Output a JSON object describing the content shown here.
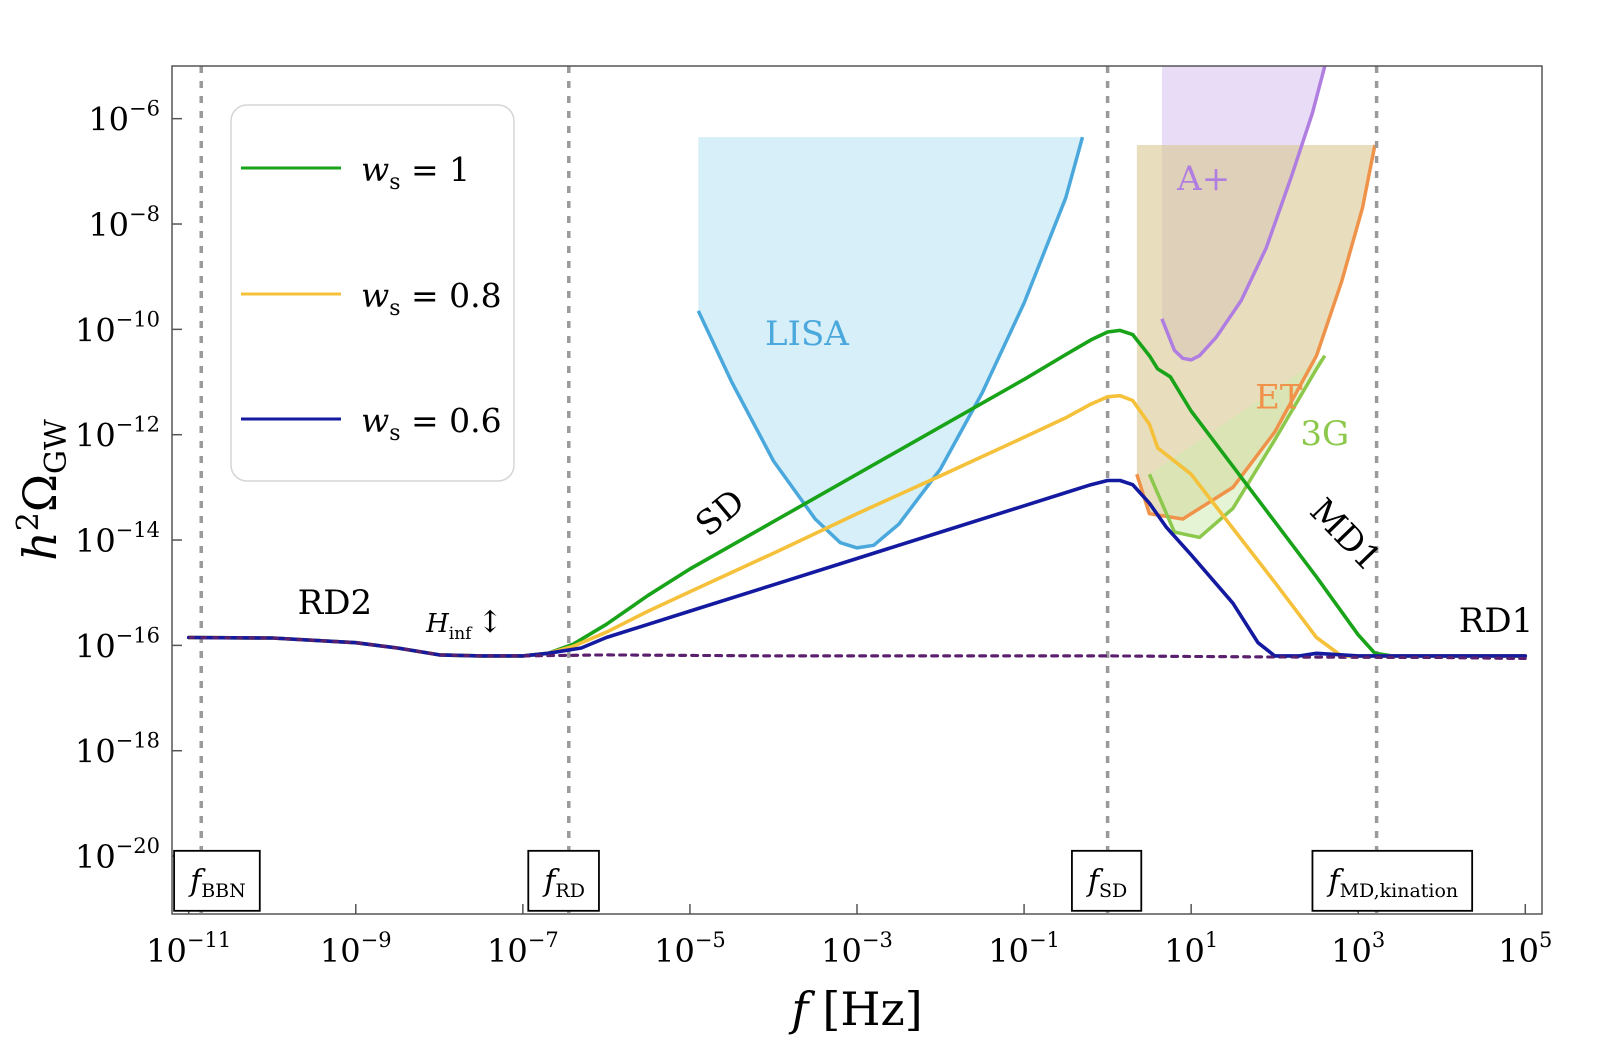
{
  "chart_data": {
    "type": "line",
    "title": "",
    "xlabel": "f [Hz]",
    "xlabel_parts": {
      "var": "f",
      "unit": "[Hz]"
    },
    "ylabel": "h²Ω_GW",
    "ylabel_parts": {
      "h": "h",
      "sq": "2",
      "omega": "Ω",
      "sub": "GW"
    },
    "x_scale": "log10",
    "y_scale": "log10",
    "xlim_log10": [
      -11.2,
      5.2
    ],
    "ylim_log10": [
      -21.1,
      -5.0
    ],
    "x_ticks": [
      {
        "exp": -11,
        "base": "10",
        "sup": "−11"
      },
      {
        "exp": -9,
        "base": "10",
        "sup": "−9"
      },
      {
        "exp": -7,
        "base": "10",
        "sup": "−7"
      },
      {
        "exp": -5,
        "base": "10",
        "sup": "−5"
      },
      {
        "exp": -3,
        "base": "10",
        "sup": "−3"
      },
      {
        "exp": -1,
        "base": "10",
        "sup": "−1"
      },
      {
        "exp": 1,
        "base": "10",
        "sup": "1"
      },
      {
        "exp": 3,
        "base": "10",
        "sup": "3"
      },
      {
        "exp": 5,
        "base": "10",
        "sup": "5"
      }
    ],
    "y_ticks": [
      {
        "exp": -6,
        "base": "10",
        "sup": "−6"
      },
      {
        "exp": -8,
        "base": "10",
        "sup": "−8"
      },
      {
        "exp": -10,
        "base": "10",
        "sup": "−10"
      },
      {
        "exp": -12,
        "base": "10",
        "sup": "−12"
      },
      {
        "exp": -14,
        "base": "10",
        "sup": "−14"
      },
      {
        "exp": -16,
        "base": "10",
        "sup": "−16"
      },
      {
        "exp": -18,
        "base": "10",
        "sup": "−18"
      },
      {
        "exp": -20,
        "base": "10",
        "sup": "−20"
      }
    ],
    "legend": {
      "placement": "top-left",
      "entries": [
        {
          "series": 0,
          "prefix": "w",
          "sub": "s",
          "eq": " = 1"
        },
        {
          "series": 1,
          "prefix": "w",
          "sub": "s",
          "eq": " = 0.8"
        },
        {
          "series": 2,
          "prefix": "w",
          "sub": "s",
          "eq": " = 0.6"
        }
      ]
    },
    "series": [
      {
        "name": "w_s = 1",
        "color": "#18a318",
        "points": [
          [
            -11,
            -15.85
          ],
          [
            -10,
            -15.86
          ],
          [
            -9,
            -15.95
          ],
          [
            -8.5,
            -16.05
          ],
          [
            -8,
            -16.18
          ],
          [
            -7.5,
            -16.2
          ],
          [
            -7,
            -16.2
          ],
          [
            -6.7,
            -16.15
          ],
          [
            -6.4,
            -15.98
          ],
          [
            -6,
            -15.6
          ],
          [
            -5.5,
            -15.05
          ],
          [
            -5,
            -14.55
          ],
          [
            -4,
            -13.65
          ],
          [
            -3,
            -12.75
          ],
          [
            -2,
            -11.85
          ],
          [
            -1,
            -10.95
          ],
          [
            -0.5,
            -10.48
          ],
          [
            -0.2,
            -10.2
          ],
          [
            0,
            -10.05
          ],
          [
            0.15,
            -10.02
          ],
          [
            0.3,
            -10.1
          ],
          [
            0.5,
            -10.5
          ],
          [
            0.6,
            -10.75
          ],
          [
            0.75,
            -10.9
          ],
          [
            1,
            -11.55
          ],
          [
            1.5,
            -12.6
          ],
          [
            2,
            -13.65
          ],
          [
            2.5,
            -14.7
          ],
          [
            3,
            -15.8
          ],
          [
            3.2,
            -16.15
          ],
          [
            3.4,
            -16.2
          ],
          [
            4,
            -16.2
          ],
          [
            5,
            -16.2
          ]
        ]
      },
      {
        "name": "w_s = 0.8",
        "color": "#f5c13a",
        "points": [
          [
            -11,
            -15.85
          ],
          [
            -10,
            -15.86
          ],
          [
            -9,
            -15.95
          ],
          [
            -8.5,
            -16.05
          ],
          [
            -8,
            -16.18
          ],
          [
            -7.5,
            -16.2
          ],
          [
            -7,
            -16.2
          ],
          [
            -6.7,
            -16.15
          ],
          [
            -6.4,
            -16.02
          ],
          [
            -6,
            -15.75
          ],
          [
            -5.5,
            -15.35
          ],
          [
            -5,
            -14.98
          ],
          [
            -4,
            -14.25
          ],
          [
            -3,
            -13.5
          ],
          [
            -2,
            -12.78
          ],
          [
            -1,
            -12.05
          ],
          [
            -0.5,
            -11.68
          ],
          [
            -0.2,
            -11.42
          ],
          [
            0,
            -11.28
          ],
          [
            0.15,
            -11.26
          ],
          [
            0.3,
            -11.35
          ],
          [
            0.5,
            -11.8
          ],
          [
            0.6,
            -12.25
          ],
          [
            1,
            -12.75
          ],
          [
            1.5,
            -13.78
          ],
          [
            2,
            -14.8
          ],
          [
            2.5,
            -15.85
          ],
          [
            2.8,
            -16.2
          ],
          [
            3,
            -16.2
          ],
          [
            4,
            -16.2
          ],
          [
            5,
            -16.2
          ]
        ]
      },
      {
        "name": "w_s = 0.6",
        "color": "#141aa0",
        "points": [
          [
            -11,
            -15.85
          ],
          [
            -10,
            -15.86
          ],
          [
            -9,
            -15.95
          ],
          [
            -8.5,
            -16.05
          ],
          [
            -8,
            -16.18
          ],
          [
            -7.5,
            -16.2
          ],
          [
            -7,
            -16.2
          ],
          [
            -6.7,
            -16.15
          ],
          [
            -6.3,
            -16.05
          ],
          [
            -6,
            -15.85
          ],
          [
            -5.5,
            -15.6
          ],
          [
            -5,
            -15.35
          ],
          [
            -4,
            -14.85
          ],
          [
            -3,
            -14.35
          ],
          [
            -2,
            -13.85
          ],
          [
            -1,
            -13.35
          ],
          [
            -0.5,
            -13.1
          ],
          [
            -0.2,
            -12.95
          ],
          [
            0,
            -12.87
          ],
          [
            0.15,
            -12.87
          ],
          [
            0.3,
            -12.95
          ],
          [
            0.5,
            -13.3
          ],
          [
            0.7,
            -13.75
          ],
          [
            1,
            -14.28
          ],
          [
            1.5,
            -15.2
          ],
          [
            1.8,
            -15.95
          ],
          [
            2,
            -16.2
          ],
          [
            2.3,
            -16.2
          ],
          [
            2.5,
            -16.15
          ],
          [
            3,
            -16.2
          ],
          [
            5,
            -16.2
          ]
        ]
      },
      {
        "name": "standard (dashed)",
        "color": "#5a1f6e",
        "dashed": true,
        "points": [
          [
            -11,
            -15.85
          ],
          [
            -10,
            -15.86
          ],
          [
            -9,
            -15.95
          ],
          [
            -8.5,
            -16.05
          ],
          [
            -8,
            -16.18
          ],
          [
            -7.5,
            -16.2
          ],
          [
            -7,
            -16.2
          ],
          [
            -6,
            -16.18
          ],
          [
            -4,
            -16.2
          ],
          [
            -2,
            -16.2
          ],
          [
            0,
            -16.2
          ],
          [
            2,
            -16.22
          ],
          [
            4,
            -16.23
          ],
          [
            5,
            -16.25
          ]
        ]
      }
    ],
    "detectors": [
      {
        "name": "LISA",
        "label": "LISA",
        "color": "#4aa8dc",
        "fill": "#aee0f2",
        "fill_opacity": 0.5,
        "top": -6.35,
        "curve": [
          [
            -4.9,
            -9.65
          ],
          [
            -4.5,
            -11.0
          ],
          [
            -4,
            -12.5
          ],
          [
            -3.5,
            -13.6
          ],
          [
            -3.2,
            -14.05
          ],
          [
            -3,
            -14.15
          ],
          [
            -2.8,
            -14.1
          ],
          [
            -2.5,
            -13.7
          ],
          [
            -2,
            -12.65
          ],
          [
            -1.5,
            -11.2
          ],
          [
            -1,
            -9.5
          ],
          [
            -0.5,
            -7.5
          ],
          [
            -0.3,
            -6.35
          ]
        ],
        "label_pos": [
          -3.6,
          -10.3
        ]
      },
      {
        "name": "A+",
        "label": "A+",
        "color": "#b07ee0",
        "fill": "#c7a7e8",
        "fill_opacity": 0.4,
        "top": -5.0,
        "band_x": [
          0.65,
          3.2
        ],
        "curve": [
          [
            0.65,
            -9.8
          ],
          [
            0.8,
            -10.4
          ],
          [
            0.9,
            -10.55
          ],
          [
            1.0,
            -10.58
          ],
          [
            1.1,
            -10.5
          ],
          [
            1.3,
            -10.15
          ],
          [
            1.6,
            -9.45
          ],
          [
            1.9,
            -8.45
          ],
          [
            2.2,
            -7.1
          ],
          [
            2.45,
            -5.9
          ],
          [
            2.6,
            -5.0
          ]
        ],
        "label_pos": [
          1.15,
          -7.35
        ]
      },
      {
        "name": "ET",
        "label": "ET",
        "color": "#f0934a",
        "fill": "#d8c891",
        "fill_opacity": 0.6,
        "top": -6.5,
        "band_x": [
          0.35,
          3.22
        ],
        "curve": [
          [
            0.35,
            -12.75
          ],
          [
            0.5,
            -13.5
          ],
          [
            0.9,
            -13.6
          ],
          [
            1.5,
            -13.0
          ],
          [
            2,
            -11.95
          ],
          [
            2.5,
            -10.5
          ],
          [
            2.8,
            -9.1
          ],
          [
            3.05,
            -7.7
          ],
          [
            3.2,
            -6.5
          ]
        ],
        "label_pos": [
          2.05,
          -11.5
        ]
      },
      {
        "name": "3G",
        "label": "3G",
        "color": "#8cc84b",
        "fill": "#cde9ae",
        "fill_opacity": 0.5,
        "curve": [
          [
            0.5,
            -12.75
          ],
          [
            0.8,
            -13.85
          ],
          [
            1.1,
            -13.95
          ],
          [
            1.5,
            -13.4
          ],
          [
            2,
            -12.1
          ],
          [
            2.5,
            -10.75
          ],
          [
            2.6,
            -10.5
          ]
        ],
        "label_pos": [
          2.6,
          -12.2
        ]
      }
    ],
    "vlines": [
      {
        "name": "f_BBN",
        "x": -10.85
      },
      {
        "name": "f_RD",
        "x": -6.45
      },
      {
        "name": "f_SD",
        "x": 0.0
      },
      {
        "name": "f_MD,kination",
        "x": 3.22
      }
    ],
    "boxed_labels": [
      {
        "name": "f-bbn",
        "main": "f",
        "sub": "BBN",
        "x": -10.65,
        "y": -20.47
      },
      {
        "name": "f-rd",
        "main": "f",
        "sub": "RD",
        "x": -6.5,
        "y": -20.47
      },
      {
        "name": "f-sd",
        "main": "f",
        "sub": "SD",
        "x": 0.0,
        "y": -20.47
      },
      {
        "name": "f-md-kination",
        "main": "f",
        "sub": "MD,kination",
        "x": 3.42,
        "y": -20.47
      }
    ],
    "annotations": [
      {
        "name": "rd2-label",
        "text": "RD2",
        "x": -9.25,
        "y": -15.4,
        "rotate": 0
      },
      {
        "name": "rd1-label",
        "text": "RD1",
        "x": 4.65,
        "y": -15.75,
        "rotate": 0
      },
      {
        "name": "sd-label",
        "text": "SD",
        "x": -4.55,
        "y": -13.65,
        "rotate": -40
      },
      {
        "name": "md1-label",
        "text": "MD1",
        "x": 2.75,
        "y": -14.05,
        "rotate": 46
      }
    ],
    "hinf_label": {
      "main": "H",
      "sub": "inf",
      "arrow": "↕",
      "x": -7.7,
      "y": -15.75
    }
  }
}
